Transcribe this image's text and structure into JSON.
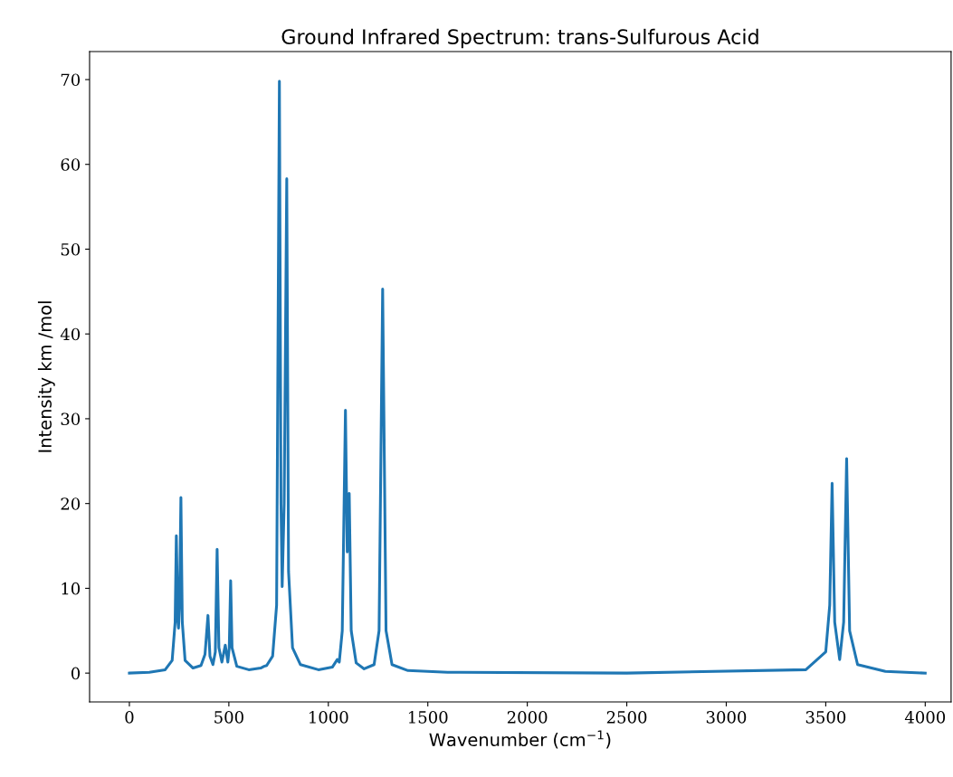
{
  "chart_data": {
    "type": "line",
    "title": "Ground Infrared Spectrum: trans-Sulfurous Acid",
    "xlabel": "Wavenumber (cm$^{−1}$)",
    "ylabel": "Intensity km /mol",
    "x": [
      0,
      100,
      180,
      215,
      230,
      236,
      244,
      247,
      252,
      259,
      266,
      280,
      320,
      360,
      380,
      395,
      405,
      420,
      432,
      441,
      450,
      465,
      482,
      495,
      502,
      509,
      516,
      540,
      600,
      660,
      677,
      690,
      720,
      740,
      754,
      762,
      768,
      778,
      791,
      800,
      820,
      860,
      950,
      1020,
      1045,
      1055,
      1070,
      1086,
      1095,
      1105,
      1115,
      1140,
      1180,
      1230,
      1255,
      1273,
      1290,
      1320,
      1400,
      1600,
      2500,
      3400,
      3500,
      3520,
      3532,
      3545,
      3570,
      3590,
      3605,
      3620,
      3660,
      3800,
      4000
    ],
    "series": [
      {
        "color": "#1f77b4",
        "values": [
          0,
          0.1,
          0.4,
          1.5,
          6,
          16.2,
          6,
          5.3,
          8,
          20.7,
          6,
          1.5,
          0.6,
          0.9,
          2.2,
          6.8,
          2,
          1.0,
          2.5,
          14.6,
          3,
          1.3,
          3.3,
          1.3,
          3,
          10.9,
          3,
          0.8,
          0.4,
          0.6,
          0.8,
          0.9,
          2,
          8,
          69.8,
          20,
          10.2,
          20,
          58.3,
          12,
          3,
          1,
          0.4,
          0.7,
          1.6,
          1.3,
          5,
          31.0,
          14.3,
          21.2,
          5,
          1.2,
          0.5,
          1,
          5,
          45.3,
          5,
          1,
          0.3,
          0.1,
          0,
          0.4,
          2.5,
          8,
          22.4,
          6,
          1.6,
          6,
          25.3,
          5,
          1,
          0.2,
          0
        ]
      }
    ],
    "xlim": [
      -200,
      4130
    ],
    "ylim": [
      -3.4,
      73.3
    ],
    "xticks": [
      0,
      500,
      1000,
      1500,
      2000,
      2500,
      3000,
      3500,
      4000
    ],
    "yticks": [
      0,
      10,
      20,
      30,
      40,
      50,
      60,
      70
    ],
    "grid": false,
    "legend": false,
    "marker": "none",
    "line_style": "solid"
  }
}
